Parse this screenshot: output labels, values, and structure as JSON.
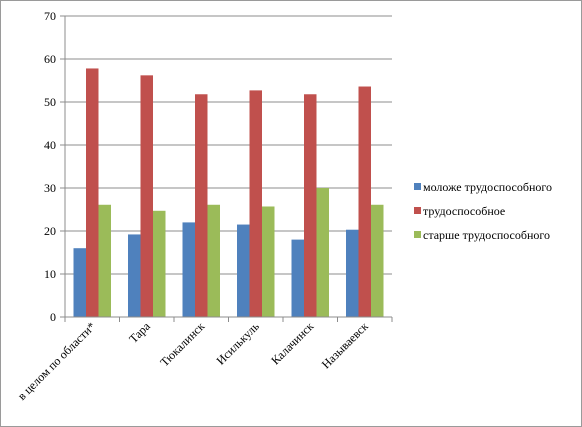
{
  "chart_data": {
    "type": "bar",
    "categories": [
      "в целом по области*",
      "Тара",
      "Тюкалинск",
      "Исилькуль",
      "Калачинск",
      "Называевск"
    ],
    "series": [
      {
        "name": "моложе трудоспособного",
        "color": "#4f81bd",
        "values": [
          16,
          19.2,
          22,
          21.5,
          18,
          20.3
        ]
      },
      {
        "name": "трудоспособное",
        "color": "#c0504d",
        "values": [
          57.8,
          56.2,
          51.8,
          52.7,
          51.8,
          53.6
        ]
      },
      {
        "name": "старше трудоспособного",
        "color": "#9bbb59",
        "values": [
          26.1,
          24.7,
          26.1,
          25.7,
          30,
          26.1
        ]
      }
    ],
    "ylim": [
      0,
      70
    ],
    "yticks": [
      "0",
      "10",
      "20",
      "30",
      "40",
      "50",
      "60",
      "70"
    ],
    "grid": true,
    "legend": "right",
    "title": "",
    "xlabel": "",
    "ylabel": ""
  }
}
